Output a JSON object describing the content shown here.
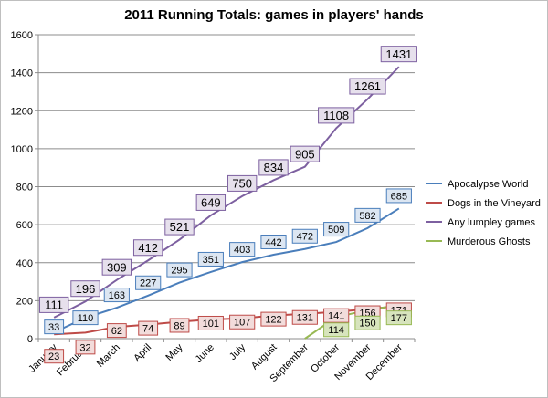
{
  "chart_data": {
    "type": "line",
    "title": "2011 Running Totals: games in players' hands",
    "xlabel": "",
    "ylabel": "",
    "categories": [
      "January",
      "February",
      "March",
      "April",
      "May",
      "June",
      "July",
      "August",
      "September",
      "October",
      "November",
      "December"
    ],
    "ylim": [
      0,
      1600
    ],
    "yticks": [
      0,
      200,
      400,
      600,
      800,
      1000,
      1200,
      1400,
      1600
    ],
    "grid": true,
    "legend_position": "right",
    "series": [
      {
        "name": "Apocalypse World",
        "color": "#4a7ebb",
        "label_fill": "#dce6f2",
        "values": [
          33,
          110,
          163,
          227,
          295,
          351,
          403,
          442,
          472,
          509,
          582,
          685
        ],
        "labels": [
          "33",
          "110",
          "163",
          "227",
          "295",
          "351",
          "403",
          "442",
          "472",
          "509",
          "582",
          "685"
        ]
      },
      {
        "name": "Dogs in the Vineyard",
        "color": "#be4b48",
        "label_fill": "#f2dcdb",
        "values": [
          23,
          32,
          62,
          74,
          89,
          101,
          107,
          122,
          131,
          141,
          156,
          171
        ],
        "labels": [
          "23",
          "32",
          "62",
          "74",
          "89",
          "101",
          "107",
          "122",
          "131",
          "141",
          "156",
          "171"
        ]
      },
      {
        "name": "Any lumpley games",
        "color": "#7d60a0",
        "label_fill": "#e6e0ec",
        "values": [
          111,
          196,
          309,
          412,
          521,
          649,
          750,
          834,
          905,
          1108,
          1261,
          1431
        ],
        "labels": [
          "111",
          "196",
          "309",
          "412",
          "521",
          "649",
          "750",
          "834",
          "905",
          "1108",
          "1261",
          "1431"
        ]
      },
      {
        "name": "Murderous Ghosts",
        "color": "#98b954",
        "label_fill": "#d7e4bd",
        "values": [
          0,
          0,
          0,
          0,
          0,
          0,
          0,
          0,
          0,
          114,
          150,
          177
        ],
        "labels": [
          "",
          "",
          "",
          "",
          "",
          "",
          "",
          "",
          "",
          "114",
          "150",
          "177"
        ]
      }
    ]
  }
}
